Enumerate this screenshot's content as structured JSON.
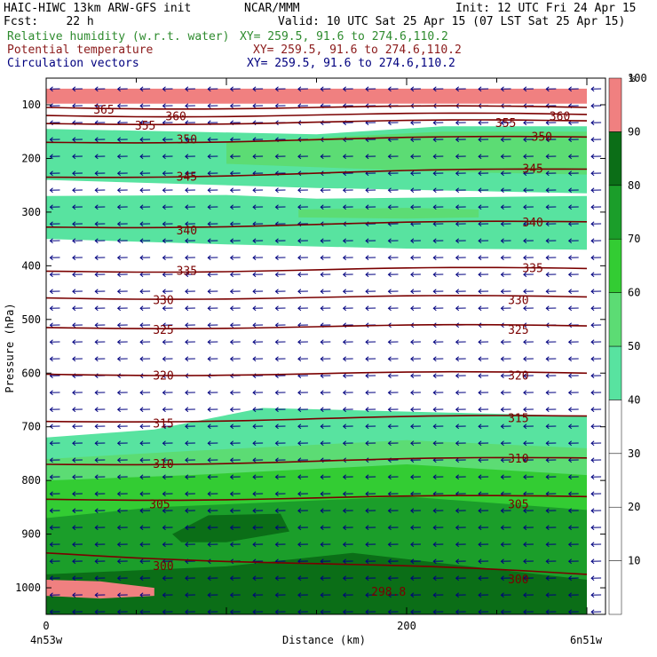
{
  "header": {
    "title_left": "HAIC-HIWC 13km ARW-GFS init",
    "title_center": "NCAR/MMM",
    "init": "Init: 12 UTC Fri 24 Apr 15",
    "fcst": "Fcst:    22 h",
    "valid": "Valid: 10 UTC Sat 25 Apr 15 (07 LST Sat 25 Apr 15)",
    "field1": "Relative humidity (w.r.t. water)",
    "field1_xy": "XY= 259.5, 91.6 to 274.6,110.2",
    "field2": "Potential temperature",
    "field2_xy": "XY= 259.5, 91.6 to 274.6,110.2",
    "field3": "Circulation vectors",
    "field3_xy": "XY= 259.5, 91.6 to 274.6,110.2"
  },
  "colors": {
    "rh_field": "#2e8b2e",
    "theta_field": "#8b1a1a",
    "vectors": "#00007f",
    "theta_lines": "#7a0000",
    "rh_50_60": "#58e3a0",
    "rh_60_70": "#5cdc74",
    "rh_70_80": "#33cc33",
    "rh_80_90": "#1b9e2a",
    "rh_90_100": "#0b6e17",
    "rh_100": "#f08080",
    "top_band": "#800000"
  },
  "chart_data": {
    "type": "cross-section",
    "xlabel": "Distance (km)",
    "ylabel": "Pressure (hPa)",
    "x_range": [
      0,
      300
    ],
    "x_ticks": [
      0,
      200
    ],
    "x_end_labels": [
      "4n53w",
      "6n51w"
    ],
    "y_range": [
      1050,
      70
    ],
    "y_ticks": [
      100,
      200,
      300,
      400,
      500,
      600,
      700,
      800,
      900,
      1000
    ],
    "colorbar": {
      "unit": "%",
      "levels": [
        10,
        20,
        30,
        40,
        50,
        60,
        70,
        80,
        90,
        100
      ],
      "colors": [
        "#ffffff",
        "#ffffff",
        "#ffffff",
        "#ffffff",
        "#58e3a0",
        "#5cdc74",
        "#33cc33",
        "#1b9e2a",
        "#0b6e17",
        "#f08080"
      ]
    },
    "theta_contours": [
      {
        "value": 300,
        "label": "300",
        "p_left": 935,
        "p_right": 975,
        "labels_at": [
          [
            65,
            960
          ],
          [
            262,
            985
          ]
        ]
      },
      {
        "value": 305,
        "label": "305",
        "p_left": 835,
        "p_right": 830,
        "labels_at": [
          [
            63,
            845
          ],
          [
            262,
            845
          ]
        ]
      },
      {
        "value": 310,
        "label": "310",
        "p_left": 770,
        "p_right": 758,
        "labels_at": [
          [
            65,
            770
          ],
          [
            262,
            760
          ]
        ]
      },
      {
        "value": 315,
        "label": "315",
        "p_left": 690,
        "p_right": 680,
        "labels_at": [
          [
            65,
            695
          ],
          [
            262,
            685
          ]
        ]
      },
      {
        "value": 320,
        "label": "320",
        "p_left": 602,
        "p_right": 600,
        "labels_at": [
          [
            65,
            605
          ],
          [
            262,
            605
          ]
        ]
      },
      {
        "value": 325,
        "label": "325",
        "p_left": 515,
        "p_right": 512,
        "labels_at": [
          [
            65,
            520
          ],
          [
            262,
            520
          ]
        ]
      },
      {
        "value": 330,
        "label": "330",
        "p_left": 460,
        "p_right": 458,
        "labels_at": [
          [
            65,
            465
          ],
          [
            262,
            465
          ]
        ]
      },
      {
        "value": 335,
        "label": "335",
        "p_left": 410,
        "p_right": 405,
        "labels_at": [
          [
            78,
            410
          ],
          [
            270,
            405
          ]
        ]
      },
      {
        "value": 340,
        "label": "340",
        "p_left": 328,
        "p_right": 318,
        "labels_at": [
          [
            78,
            335
          ],
          [
            270,
            320
          ]
        ]
      },
      {
        "value": 345,
        "label": "345",
        "p_left": 235,
        "p_right": 220,
        "labels_at": [
          [
            78,
            235
          ],
          [
            270,
            220
          ]
        ]
      },
      {
        "value": 350,
        "label": "350",
        "p_left": 170,
        "p_right": 160,
        "labels_at": [
          [
            78,
            165
          ],
          [
            275,
            160
          ]
        ]
      },
      {
        "value": 355,
        "label": "355",
        "p_left": 135,
        "p_right": 130,
        "labels_at": [
          [
            55,
            140
          ],
          [
            255,
            135
          ]
        ]
      },
      {
        "value": 360,
        "label": "360",
        "p_left": 120,
        "p_right": 118,
        "labels_at": [
          [
            72,
            122
          ],
          [
            285,
            122
          ]
        ]
      },
      {
        "value": 365,
        "label": "365",
        "p_left": 105,
        "p_right": 105,
        "labels_at": [
          [
            32,
            110
          ]
        ]
      }
    ],
    "contour_min_label": "298.8",
    "contour_min_at": [
      190,
      1015
    ],
    "rh_regions": [
      {
        "level": "rh_100",
        "poly": [
          [
            0,
            70
          ],
          [
            300,
            70
          ],
          [
            300,
            98
          ],
          [
            0,
            98
          ]
        ]
      },
      {
        "level": "rh_50_60",
        "poly": [
          [
            0,
            145
          ],
          [
            150,
            155
          ],
          [
            220,
            140
          ],
          [
            300,
            140
          ],
          [
            300,
            265
          ],
          [
            150,
            255
          ],
          [
            0,
            240
          ]
        ]
      },
      {
        "level": "rh_60_70",
        "poly": [
          [
            100,
            170
          ],
          [
            220,
            150
          ],
          [
            300,
            150
          ],
          [
            300,
            230
          ],
          [
            220,
            225
          ],
          [
            100,
            210
          ]
        ]
      },
      {
        "level": "rh_50_60",
        "poly": [
          [
            0,
            270
          ],
          [
            100,
            268
          ],
          [
            150,
            275
          ],
          [
            300,
            270
          ],
          [
            300,
            370
          ],
          [
            200,
            368
          ],
          [
            100,
            360
          ],
          [
            0,
            350
          ]
        ]
      },
      {
        "level": "rh_60_70",
        "poly": [
          [
            140,
            295
          ],
          [
            200,
            292
          ],
          [
            240,
            295
          ],
          [
            240,
            310
          ],
          [
            200,
            312
          ],
          [
            140,
            310
          ]
        ]
      },
      {
        "level": "rh_50_60",
        "poly": [
          [
            0,
            720
          ],
          [
            60,
            705
          ],
          [
            120,
            665
          ],
          [
            300,
            680
          ],
          [
            300,
            1050
          ],
          [
            0,
            1050
          ]
        ]
      },
      {
        "level": "rh_60_70",
        "poly": [
          [
            0,
            760
          ],
          [
            80,
            745
          ],
          [
            200,
            725
          ],
          [
            300,
            740
          ],
          [
            300,
            1050
          ],
          [
            0,
            1050
          ]
        ]
      },
      {
        "level": "rh_70_80",
        "poly": [
          [
            0,
            800
          ],
          [
            80,
            790
          ],
          [
            200,
            770
          ],
          [
            300,
            790
          ],
          [
            300,
            1050
          ],
          [
            0,
            1050
          ]
        ]
      },
      {
        "level": "rh_80_90",
        "poly": [
          [
            0,
            870
          ],
          [
            60,
            850
          ],
          [
            200,
            830
          ],
          [
            300,
            855
          ],
          [
            300,
            1050
          ],
          [
            0,
            1050
          ]
        ]
      },
      {
        "level": "rh_90_100",
        "poly": [
          [
            70,
            900
          ],
          [
            90,
            865
          ],
          [
            130,
            862
          ],
          [
            135,
            895
          ],
          [
            100,
            915
          ],
          [
            75,
            915
          ]
        ]
      },
      {
        "level": "rh_90_100",
        "poly": [
          [
            0,
            975
          ],
          [
            100,
            960
          ],
          [
            170,
            935
          ],
          [
            300,
            985
          ],
          [
            300,
            1050
          ],
          [
            0,
            1050
          ]
        ]
      },
      {
        "level": "rh_100",
        "poly": [
          [
            0,
            985
          ],
          [
            30,
            988
          ],
          [
            60,
            1000
          ],
          [
            60,
            1015
          ],
          [
            30,
            1020
          ],
          [
            0,
            1015
          ]
        ]
      }
    ],
    "wind_vector": {
      "u_relative": -1.0,
      "v_relative": 0.05
    }
  }
}
